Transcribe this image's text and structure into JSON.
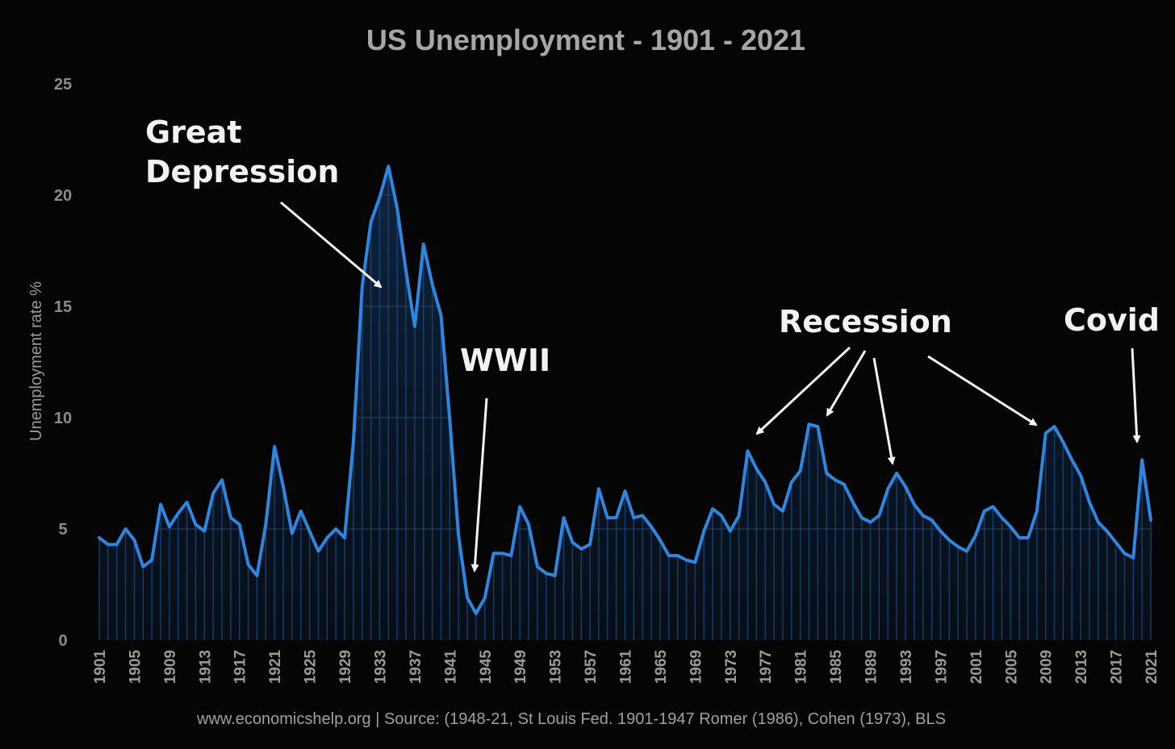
{
  "chart_data": {
    "type": "line",
    "title": "US Unemployment - 1901 - 2021",
    "xlabel": "",
    "ylabel": "Unemployment rate %",
    "ylim": [
      0,
      25
    ],
    "yticks": [
      "0",
      "5",
      "10",
      "15",
      "20",
      "25"
    ],
    "grid": true,
    "x_start": 1901,
    "x_tick_step": 4,
    "x": [
      1901,
      1902,
      1903,
      1904,
      1905,
      1906,
      1907,
      1908,
      1909,
      1910,
      1911,
      1912,
      1913,
      1914,
      1915,
      1916,
      1917,
      1918,
      1919,
      1920,
      1921,
      1922,
      1923,
      1924,
      1925,
      1926,
      1927,
      1928,
      1929,
      1930,
      1931,
      1932,
      1933,
      1934,
      1935,
      1936,
      1937,
      1938,
      1939,
      1940,
      1941,
      1942,
      1943,
      1944,
      1945,
      1946,
      1947,
      1948,
      1949,
      1950,
      1951,
      1952,
      1953,
      1954,
      1955,
      1956,
      1957,
      1958,
      1959,
      1960,
      1961,
      1962,
      1963,
      1964,
      1965,
      1966,
      1967,
      1968,
      1969,
      1970,
      1971,
      1972,
      1973,
      1974,
      1975,
      1976,
      1977,
      1978,
      1979,
      1980,
      1981,
      1982,
      1983,
      1984,
      1985,
      1986,
      1987,
      1988,
      1989,
      1990,
      1991,
      1992,
      1993,
      1994,
      1995,
      1996,
      1997,
      1998,
      1999,
      2000,
      2001,
      2002,
      2003,
      2004,
      2005,
      2006,
      2007,
      2008,
      2009,
      2010,
      2011,
      2012,
      2013,
      2014,
      2015,
      2016,
      2017,
      2018,
      2019,
      2020,
      2021
    ],
    "series": [
      {
        "name": "Unemployment rate %",
        "color": "#2e86de",
        "values": [
          4.6,
          4.3,
          4.3,
          5.0,
          4.5,
          3.3,
          3.6,
          6.1,
          5.1,
          5.7,
          6.2,
          5.2,
          4.9,
          6.6,
          7.2,
          5.5,
          5.2,
          3.4,
          2.9,
          5.2,
          8.7,
          6.9,
          4.8,
          5.8,
          4.9,
          4.0,
          4.6,
          5.0,
          4.6,
          8.9,
          15.9,
          18.8,
          19.9,
          21.3,
          19.4,
          16.6,
          14.1,
          17.8,
          16.0,
          14.6,
          9.9,
          4.7,
          1.9,
          1.2,
          1.9,
          3.9,
          3.9,
          3.8,
          6.0,
          5.2,
          3.3,
          3.0,
          2.9,
          5.5,
          4.4,
          4.1,
          4.3,
          6.8,
          5.5,
          5.5,
          6.7,
          5.5,
          5.6,
          5.1,
          4.5,
          3.8,
          3.8,
          3.6,
          3.5,
          4.9,
          5.9,
          5.6,
          4.9,
          5.6,
          8.5,
          7.7,
          7.1,
          6.1,
          5.8,
          7.1,
          7.6,
          9.7,
          9.6,
          7.5,
          7.2,
          7.0,
          6.2,
          5.5,
          5.3,
          5.6,
          6.8,
          7.5,
          6.9,
          6.1,
          5.6,
          5.4,
          4.9,
          4.5,
          4.2,
          4.0,
          4.7,
          5.8,
          6.0,
          5.5,
          5.1,
          4.6,
          4.6,
          5.8,
          9.3,
          9.6,
          8.9,
          8.1,
          7.4,
          6.2,
          5.3,
          4.9,
          4.4,
          3.9,
          3.7,
          8.1,
          5.4
        ]
      }
    ],
    "annotations": [
      {
        "text_lines": [
          "Great",
          "Depression"
        ]
      },
      {
        "text_lines": [
          "WWII"
        ]
      },
      {
        "text_lines": [
          "Recession"
        ]
      },
      {
        "text_lines": [
          "Covid"
        ]
      }
    ]
  },
  "footer": {
    "source": "www.economicshelp.org  | Source: (1948-21, St Louis Fed. 1901-1947 Romer (1986), Cohen (1973), BLS"
  },
  "colors": {
    "background": "#050505",
    "line": "#2e86de",
    "annotation": "#f2f2f2"
  }
}
